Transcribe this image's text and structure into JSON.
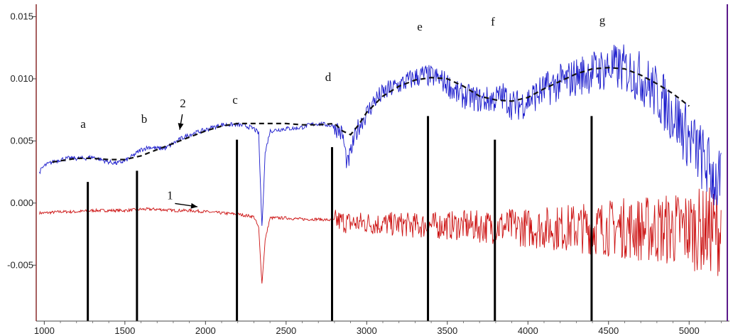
{
  "chart_data": {
    "type": "line",
    "title": "",
    "xlabel": "",
    "ylabel": "",
    "xlim": [
      950,
      5250
    ],
    "ylim": [
      -0.0095,
      0.016
    ],
    "grid": false,
    "x_ticks": [
      1000,
      1500,
      2000,
      2500,
      3000,
      3500,
      4000,
      4500,
      5000
    ],
    "x_tick_labels": [
      "1000",
      "1500",
      "2000",
      "2500",
      "3000",
      "3500",
      "4000",
      "4500",
      "5000"
    ],
    "y_ticks": [
      -0.005,
      0.0,
      0.005,
      0.01,
      0.015
    ],
    "y_tick_labels": [
      "-0.005",
      "0.000",
      "0.005",
      "0.010",
      "0.015"
    ],
    "series": [
      {
        "color": "#1a1acc",
        "style": "noisy",
        "x": [
          970,
          1000,
          1050,
          1100,
          1150,
          1200,
          1250,
          1300,
          1350,
          1400,
          1450,
          1500,
          1550,
          1600,
          1650,
          1700,
          1750,
          1800,
          1850,
          1900,
          1950,
          2000,
          2050,
          2100,
          2150,
          2200,
          2250,
          2300,
          2330,
          2350,
          2370,
          2400,
          2450,
          2500,
          2550,
          2600,
          2650,
          2700,
          2750,
          2800,
          2850,
          2880,
          2920,
          2950,
          3000,
          3050,
          3100,
          3150,
          3200,
          3250,
          3300,
          3350,
          3400,
          3450,
          3500,
          3550,
          3600,
          3650,
          3700,
          3750,
          3800,
          3850,
          3900,
          3950,
          4000,
          4050,
          4100,
          4150,
          4200,
          4250,
          4300,
          4350,
          4400,
          4450,
          4500,
          4550,
          4600,
          4650,
          4700,
          4750,
          4800,
          4850,
          4900,
          4950,
          5000,
          5050,
          5100,
          5150,
          5200
        ],
        "y": [
          0.0025,
          0.003,
          0.0033,
          0.0035,
          0.0036,
          0.0036,
          0.0036,
          0.0037,
          0.0035,
          0.0033,
          0.0032,
          0.0034,
          0.0038,
          0.0043,
          0.0045,
          0.0044,
          0.0044,
          0.0048,
          0.0052,
          0.0055,
          0.0057,
          0.0059,
          0.0061,
          0.0063,
          0.0063,
          0.0063,
          0.0062,
          0.006,
          0.0056,
          -0.002,
          0.004,
          0.0058,
          0.0059,
          0.006,
          0.006,
          0.0061,
          0.0063,
          0.0064,
          0.0063,
          0.0062,
          0.0055,
          0.003,
          0.005,
          0.0062,
          0.0072,
          0.0083,
          0.0088,
          0.0092,
          0.0095,
          0.0098,
          0.0101,
          0.0103,
          0.0102,
          0.01,
          0.0096,
          0.0089,
          0.0086,
          0.0085,
          0.0083,
          0.0083,
          0.0084,
          0.0086,
          0.0079,
          0.0079,
          0.0083,
          0.0087,
          0.0091,
          0.0094,
          0.0097,
          0.0099,
          0.0102,
          0.0104,
          0.0106,
          0.0107,
          0.0109,
          0.0109,
          0.0108,
          0.0105,
          0.0101,
          0.0095,
          0.0088,
          0.008,
          0.0072,
          0.0062,
          0.0052,
          0.0042,
          0.0032,
          0.0022,
          0.0012
        ]
      },
      {
        "color": "#cc1111",
        "style": "noisy",
        "x": [
          970,
          1000,
          1100,
          1200,
          1300,
          1400,
          1500,
          1600,
          1700,
          1800,
          1900,
          2000,
          2100,
          2200,
          2300,
          2330,
          2350,
          2370,
          2400,
          2500,
          2600,
          2700,
          2800,
          2900,
          3000,
          3100,
          3200,
          3300,
          3400,
          3500,
          3600,
          3700,
          3800,
          3900,
          4000,
          4100,
          4200,
          4300,
          4400,
          4500,
          4600,
          4700,
          4800,
          4900,
          5000,
          5100,
          5200
        ],
        "y": [
          -0.0008,
          -0.0008,
          -0.0007,
          -0.0007,
          -0.0006,
          -0.0006,
          -0.0006,
          -0.0005,
          -0.0005,
          -0.0006,
          -0.0006,
          -0.0007,
          -0.0008,
          -0.0009,
          -0.0011,
          -0.002,
          -0.0065,
          -0.003,
          -0.0012,
          -0.0012,
          -0.0013,
          -0.0013,
          -0.0014,
          -0.0016,
          -0.0016,
          -0.0017,
          -0.0017,
          -0.0018,
          -0.0018,
          -0.0018,
          -0.0018,
          -0.0019,
          -0.0019,
          -0.0019,
          -0.002,
          -0.002,
          -0.002,
          -0.002,
          -0.002,
          -0.002,
          -0.002,
          -0.0021,
          -0.0021,
          -0.0021,
          -0.0021,
          -0.0022,
          -0.0022
        ]
      },
      {
        "color": "#111111",
        "style": "dashed",
        "x": [
          1050,
          1100,
          1200,
          1300,
          1400,
          1500,
          1600,
          1700,
          1800,
          1900,
          2000,
          2100,
          2200,
          2300,
          2400,
          2500,
          2600,
          2700,
          2800,
          2850,
          2900,
          2950,
          3000,
          3100,
          3200,
          3300,
          3400,
          3500,
          3600,
          3700,
          3800,
          3900,
          4000,
          4100,
          4200,
          4300,
          4400,
          4500,
          4600,
          4700,
          4800,
          4900,
          5000
        ],
        "y": [
          0.0033,
          0.0034,
          0.0036,
          0.0036,
          0.0035,
          0.0035,
          0.0038,
          0.0043,
          0.0048,
          0.0053,
          0.0058,
          0.0062,
          0.0064,
          0.0064,
          0.0064,
          0.0064,
          0.0063,
          0.0063,
          0.0064,
          0.0058,
          0.0055,
          0.0063,
          0.0073,
          0.0086,
          0.0094,
          0.0099,
          0.0101,
          0.01,
          0.0094,
          0.0086,
          0.0083,
          0.0082,
          0.0085,
          0.0092,
          0.0098,
          0.0104,
          0.0108,
          0.0109,
          0.0108,
          0.0103,
          0.0096,
          0.0088,
          0.0078
        ]
      }
    ],
    "markers": [
      {
        "label": "a",
        "x": 1270,
        "y_top": 0.0017
      },
      {
        "label": "b",
        "x": 1575,
        "y_top": 0.0026
      },
      {
        "label": "c",
        "x": 2195,
        "y_top": 0.0051
      },
      {
        "label": "d",
        "x": 2785,
        "y_top": 0.0045
      },
      {
        "label": "e",
        "x": 3380,
        "y_top": 0.007
      },
      {
        "label": "f",
        "x": 3795,
        "y_top": 0.0051
      },
      {
        "label": "g",
        "x": 4395,
        "y_top": 0.007
      }
    ],
    "annotations": [
      {
        "label": "1",
        "text_x": 1780,
        "text_y": 0.0003,
        "arrow_x": 1950,
        "arrow_y": -0.0003
      },
      {
        "label": "2",
        "text_x": 1860,
        "text_y": 0.0077,
        "arrow_x": 1840,
        "arrow_y": 0.0059
      }
    ]
  }
}
